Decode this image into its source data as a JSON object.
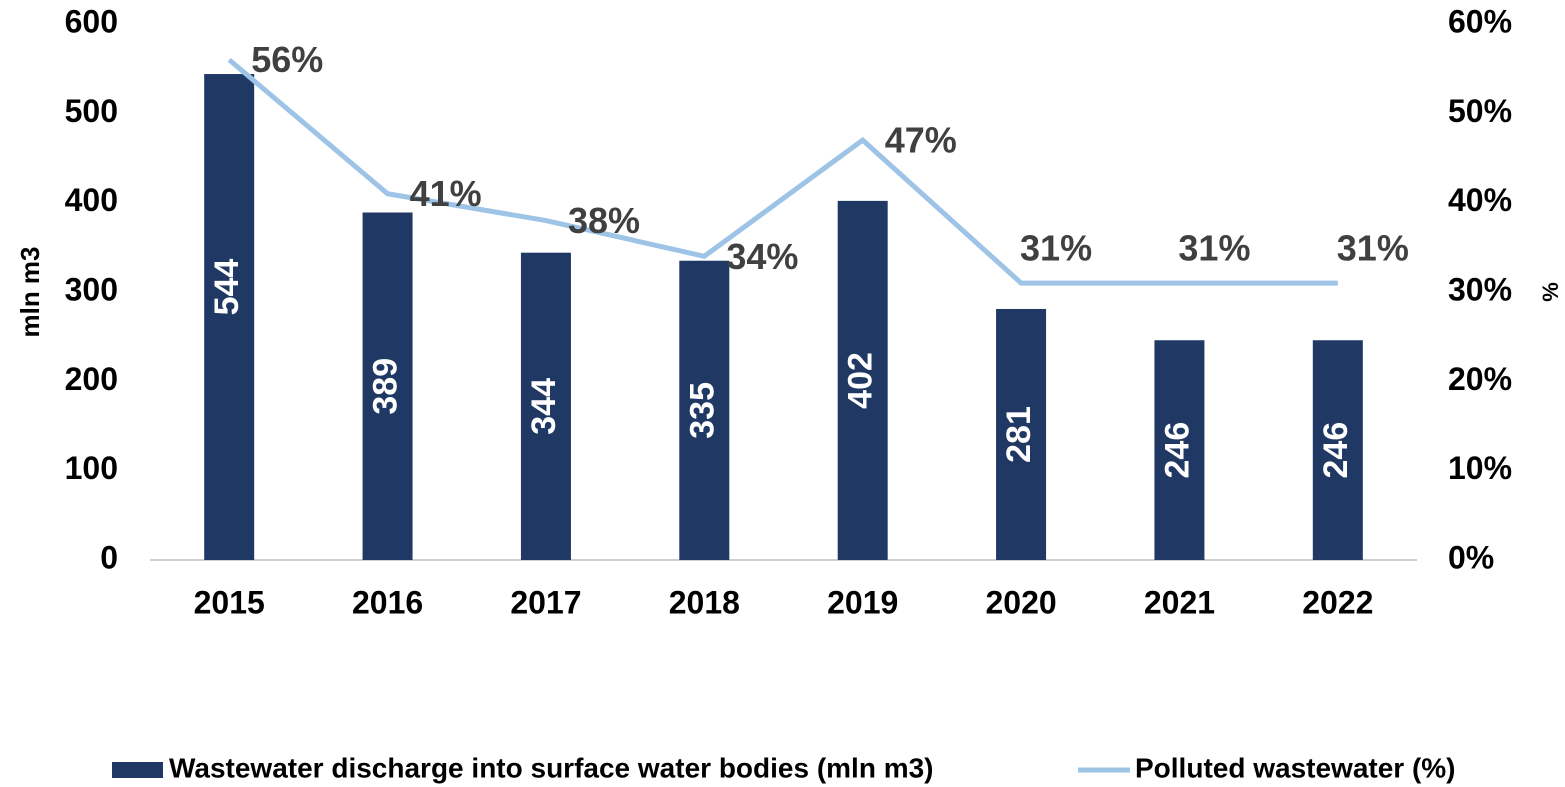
{
  "chart_data": {
    "type": "bar_line",
    "categories": [
      "2015",
      "2016",
      "2017",
      "2018",
      "2019",
      "2020",
      "2021",
      "2022"
    ],
    "series": [
      {
        "name": "Wastewater discharge into surface water bodies (mln m3)",
        "type": "bar",
        "color": "#203864",
        "values": [
          544,
          389,
          344,
          335,
          402,
          281,
          246,
          246
        ]
      },
      {
        "name": "Polluted wastewater (%)",
        "type": "line",
        "axis": "y2",
        "color": "#9dc3e6",
        "values": [
          56,
          41,
          38,
          34,
          47,
          31,
          31,
          31
        ],
        "value_labels": [
          "56%",
          "41%",
          "38%",
          "34%",
          "47%",
          "31%",
          "31%",
          "31%"
        ]
      }
    ],
    "ylabel": "mln m3",
    "y2label": "%",
    "ylim": [
      0,
      600
    ],
    "yticks": [
      0,
      100,
      200,
      300,
      400,
      500,
      600
    ],
    "y2lim": [
      0,
      60
    ],
    "y2ticks": [
      {
        "value": 0,
        "label": "0%"
      },
      {
        "value": 10,
        "label": "10%"
      },
      {
        "value": 20,
        "label": "20%"
      },
      {
        "value": 30,
        "label": "30%"
      },
      {
        "value": 40,
        "label": "40%"
      },
      {
        "value": 50,
        "label": "50%"
      },
      {
        "value": 60,
        "label": "60%"
      }
    ],
    "grid": false,
    "legend": "bottom"
  }
}
